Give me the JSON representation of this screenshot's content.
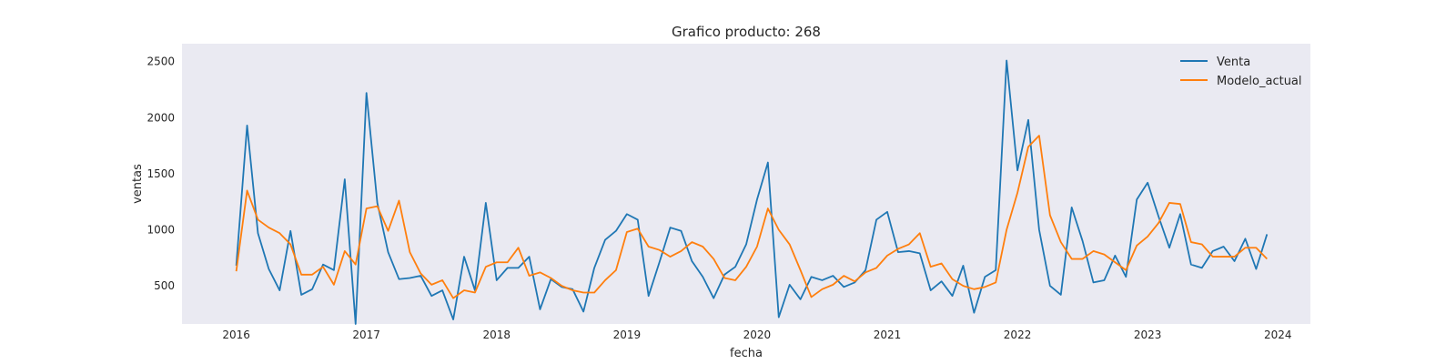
{
  "chart_data": {
    "type": "line",
    "title": "Grafico producto: 268",
    "xlabel": "fecha",
    "ylabel": "ventas",
    "x_start": "2016-01",
    "x_frequency": "monthly",
    "xlim": [
      "2015-08",
      "2024-04"
    ],
    "ylim": [
      160,
      2660
    ],
    "xticks": [
      "2016",
      "2017",
      "2018",
      "2019",
      "2020",
      "2021",
      "2022",
      "2023",
      "2024"
    ],
    "yticks": [
      500,
      1000,
      1500,
      2000,
      2500
    ],
    "grid": false,
    "background": "#eaeaf2",
    "legend": "top-right",
    "series": [
      {
        "name": "Venta",
        "color": "#1f77b4",
        "values": [
          680,
          1930,
          970,
          650,
          460,
          990,
          420,
          470,
          690,
          640,
          1450,
          160,
          2220,
          1240,
          800,
          560,
          570,
          590,
          410,
          460,
          200,
          760,
          460,
          1240,
          550,
          660,
          660,
          760,
          290,
          560,
          490,
          470,
          270,
          660,
          910,
          990,
          1140,
          1090,
          410,
          710,
          1020,
          990,
          720,
          580,
          390,
          600,
          670,
          870,
          1270,
          1600,
          220,
          510,
          380,
          580,
          550,
          590,
          490,
          530,
          640,
          1090,
          1160,
          800,
          810,
          790,
          460,
          540,
          410,
          680,
          260,
          580,
          640,
          2510,
          1530,
          1980,
          1000,
          500,
          420,
          1200,
          900,
          530,
          550,
          770,
          580,
          1270,
          1420,
          1120,
          840,
          1140,
          690,
          660,
          810,
          850,
          720,
          920,
          650,
          960
        ]
      },
      {
        "name": "Modelo_actual",
        "color": "#ff7f0e",
        "values": [
          630,
          1350,
          1090,
          1020,
          970,
          870,
          600,
          600,
          670,
          510,
          810,
          690,
          1190,
          1210,
          990,
          1260,
          800,
          610,
          510,
          550,
          390,
          460,
          440,
          670,
          710,
          710,
          840,
          590,
          620,
          570,
          500,
          460,
          440,
          440,
          550,
          640,
          980,
          1010,
          850,
          820,
          760,
          810,
          890,
          850,
          740,
          570,
          550,
          670,
          850,
          1190,
          1000,
          870,
          640,
          400,
          470,
          510,
          590,
          540,
          620,
          660,
          770,
          830,
          870,
          970,
          670,
          700,
          560,
          500,
          470,
          490,
          530,
          1000,
          1330,
          1740,
          1840,
          1130,
          890,
          740,
          740,
          810,
          780,
          710,
          640,
          860,
          940,
          1060,
          1240,
          1230,
          890,
          870,
          760,
          760,
          760,
          840,
          840,
          740
        ]
      }
    ]
  }
}
